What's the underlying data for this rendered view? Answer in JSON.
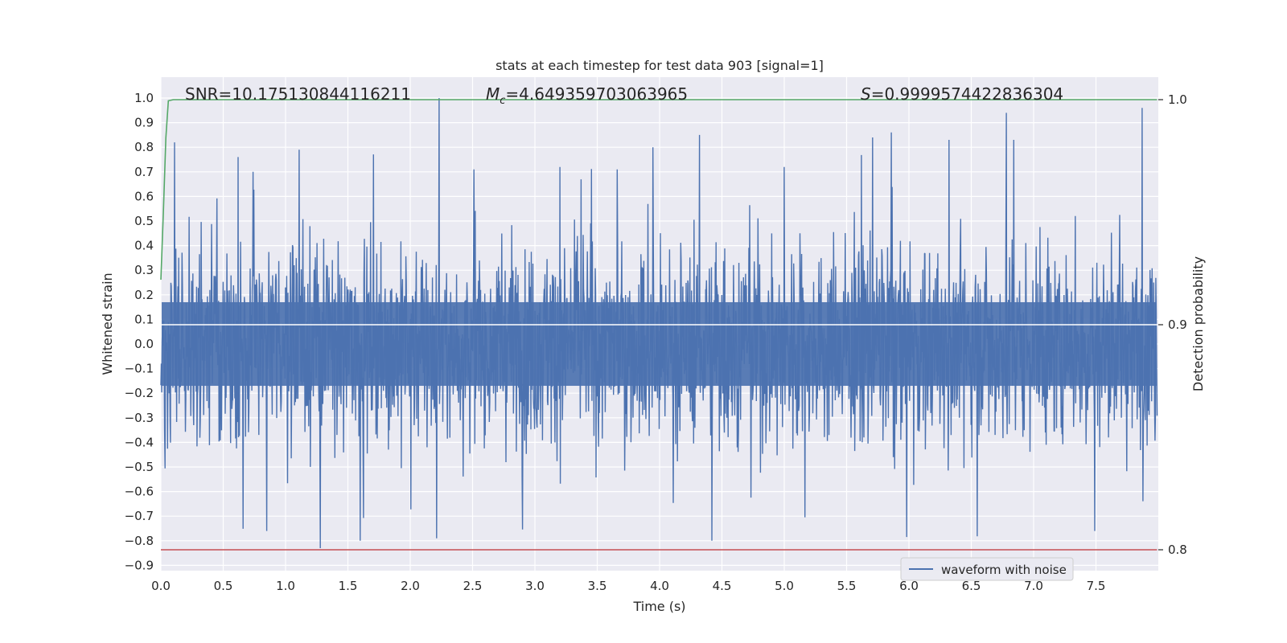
{
  "chart_data": {
    "type": "line",
    "title": "stats at each timestep for test data 903 [signal=1]",
    "xlabel": "Time (s)",
    "ylabel": "Whitened strain",
    "y2label": "Detection probability",
    "xlim": [
      0.0,
      8.0
    ],
    "ylim": [
      -0.92,
      1.08
    ],
    "y2lim": [
      0.79,
      1.0094
    ],
    "x_ticks": [
      "0.0",
      "0.5",
      "1.0",
      "1.5",
      "2.0",
      "2.5",
      "3.0",
      "3.5",
      "4.0",
      "4.5",
      "5.0",
      "5.5",
      "6.0",
      "6.5",
      "7.0",
      "7.5"
    ],
    "y_ticks": [
      "1.0",
      "0.9",
      "0.8",
      "0.7",
      "0.6",
      "0.5",
      "0.4",
      "0.3",
      "0.2",
      "0.1",
      "0.0",
      "−0.1",
      "−0.2",
      "−0.3",
      "−0.4",
      "−0.5",
      "−0.6",
      "−0.7",
      "−0.8",
      "−0.9"
    ],
    "y2_ticks": [
      "1.0",
      "0.9",
      "0.8"
    ],
    "annotations": {
      "snr": "SNR=10.175130844116211",
      "mc_symbol": "M",
      "mc_subscript": "c",
      "mc_value": "=4.649359703063965",
      "s_symbol": "S",
      "s_value": "=0.9999574422836304"
    },
    "legend": {
      "label": "waveform with noise",
      "placement": "bottom-right"
    },
    "grid": true,
    "background": "#eaeaf2",
    "colors": {
      "waveform": "#4c72b0",
      "probability": "#55a868",
      "threshold": "#c44e52",
      "mean_line": "#ffffff"
    },
    "series": [
      {
        "name": "waveform with noise",
        "axis": "left",
        "x_range": [
          0.0,
          7.99
        ],
        "y_envelope": [
          -0.84,
          1.0
        ],
        "peaks": [
          {
            "x": 0.11,
            "y": 0.82
          },
          {
            "x": 0.62,
            "y": 0.76
          },
          {
            "x": 0.74,
            "y": 0.7
          },
          {
            "x": 1.11,
            "y": 0.79
          },
          {
            "x": 1.28,
            "y": -0.83
          },
          {
            "x": 2.23,
            "y": 1.0
          },
          {
            "x": 2.21,
            "y": -0.79
          },
          {
            "x": 0.85,
            "y": -0.76
          },
          {
            "x": 4.32,
            "y": 0.85
          },
          {
            "x": 4.42,
            "y": -0.8
          },
          {
            "x": 5.71,
            "y": 0.84
          },
          {
            "x": 5.86,
            "y": 0.86
          },
          {
            "x": 6.32,
            "y": 0.83
          },
          {
            "x": 6.78,
            "y": 0.94
          },
          {
            "x": 6.84,
            "y": 0.83
          },
          {
            "x": 7.49,
            "y": -0.76
          },
          {
            "x": 7.87,
            "y": 0.96
          },
          {
            "x": 3.2,
            "y": 0.72
          },
          {
            "x": 5.0,
            "y": 0.72
          },
          {
            "x": 3.66,
            "y": 0.71
          },
          {
            "x": 2.51,
            "y": 0.71
          }
        ]
      },
      {
        "name": "",
        "axis": "right",
        "x": [
          0.0,
          0.02,
          0.04,
          0.06,
          0.1,
          0.5,
          2.0,
          4.0,
          6.0,
          7.99
        ],
        "y": [
          0.92,
          0.95,
          0.983,
          0.9995,
          1.0,
          1.0,
          1.0,
          1.0,
          1.0,
          1.0
        ]
      },
      {
        "name": "",
        "axis": "right",
        "x": [
          0.0,
          7.99
        ],
        "y": [
          0.9,
          0.9
        ]
      },
      {
        "name": "",
        "axis": "right",
        "x": [
          0.0,
          7.99
        ],
        "y": [
          0.8,
          0.8
        ]
      }
    ]
  }
}
